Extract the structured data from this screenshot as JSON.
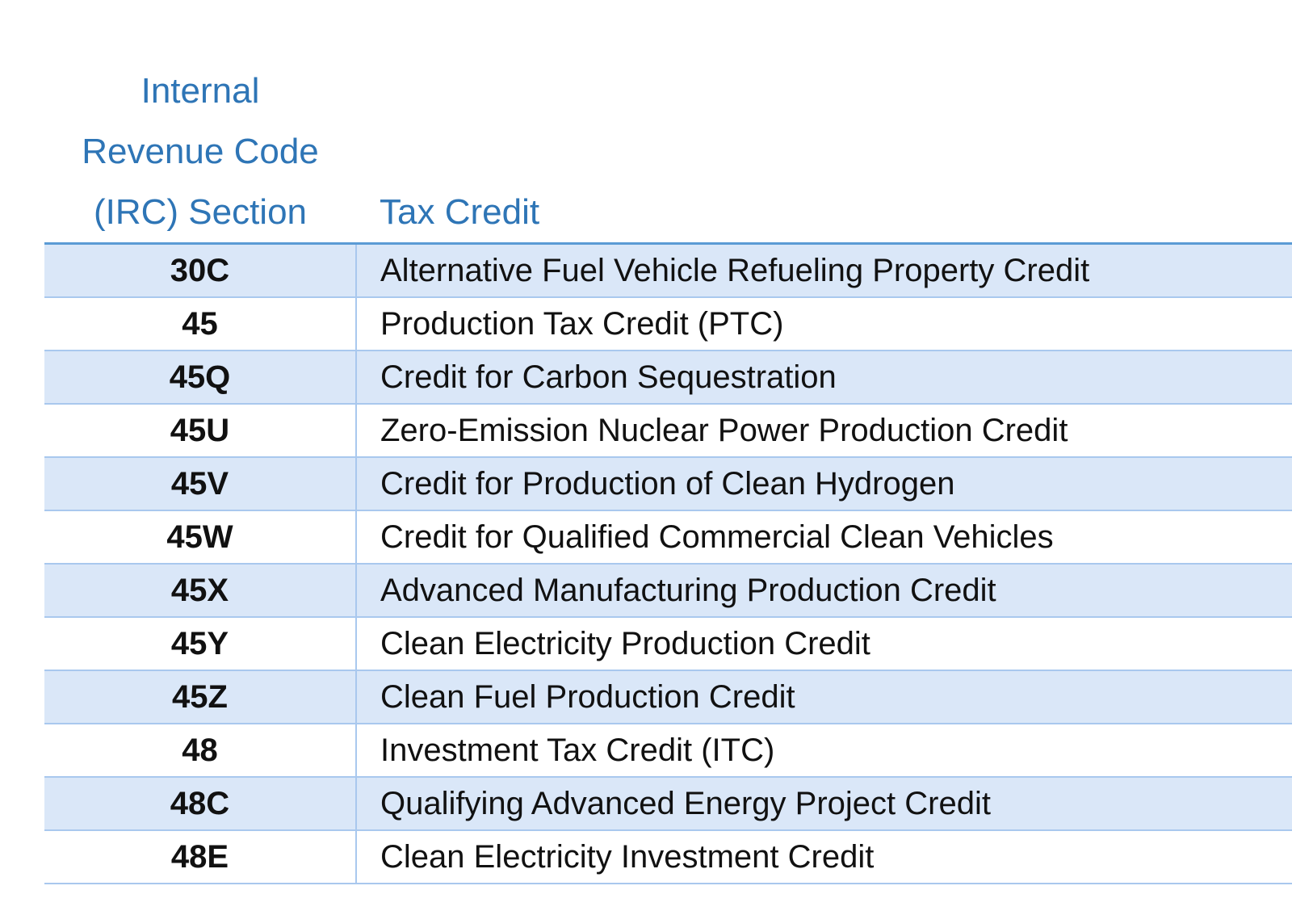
{
  "table": {
    "header": [
      "Internal Revenue Code (IRC) Section",
      "Tax Credit"
    ],
    "rows": [
      [
        "30C",
        "Alternative Fuel Vehicle Refueling Property Credit"
      ],
      [
        "45",
        "Production Tax Credit (PTC)"
      ],
      [
        "45Q",
        "Credit for Carbon Sequestration"
      ],
      [
        "45U",
        "Zero-Emission Nuclear Power Production Credit"
      ],
      [
        "45V",
        "Credit for Production of Clean Hydrogen"
      ],
      [
        "45W",
        "Credit for Qualified Commercial Clean Vehicles"
      ],
      [
        "45X",
        "Advanced Manufacturing Production Credit"
      ],
      [
        "45Y",
        "Clean Electricity Production Credit"
      ],
      [
        "45Z",
        "Clean Fuel Production Credit"
      ],
      [
        "48",
        "Investment Tax Credit (ITC)"
      ],
      [
        "48C",
        "Qualifying Advanced Energy Project Credit"
      ],
      [
        "48E",
        "Clean Electricity Investment Credit"
      ]
    ]
  }
}
